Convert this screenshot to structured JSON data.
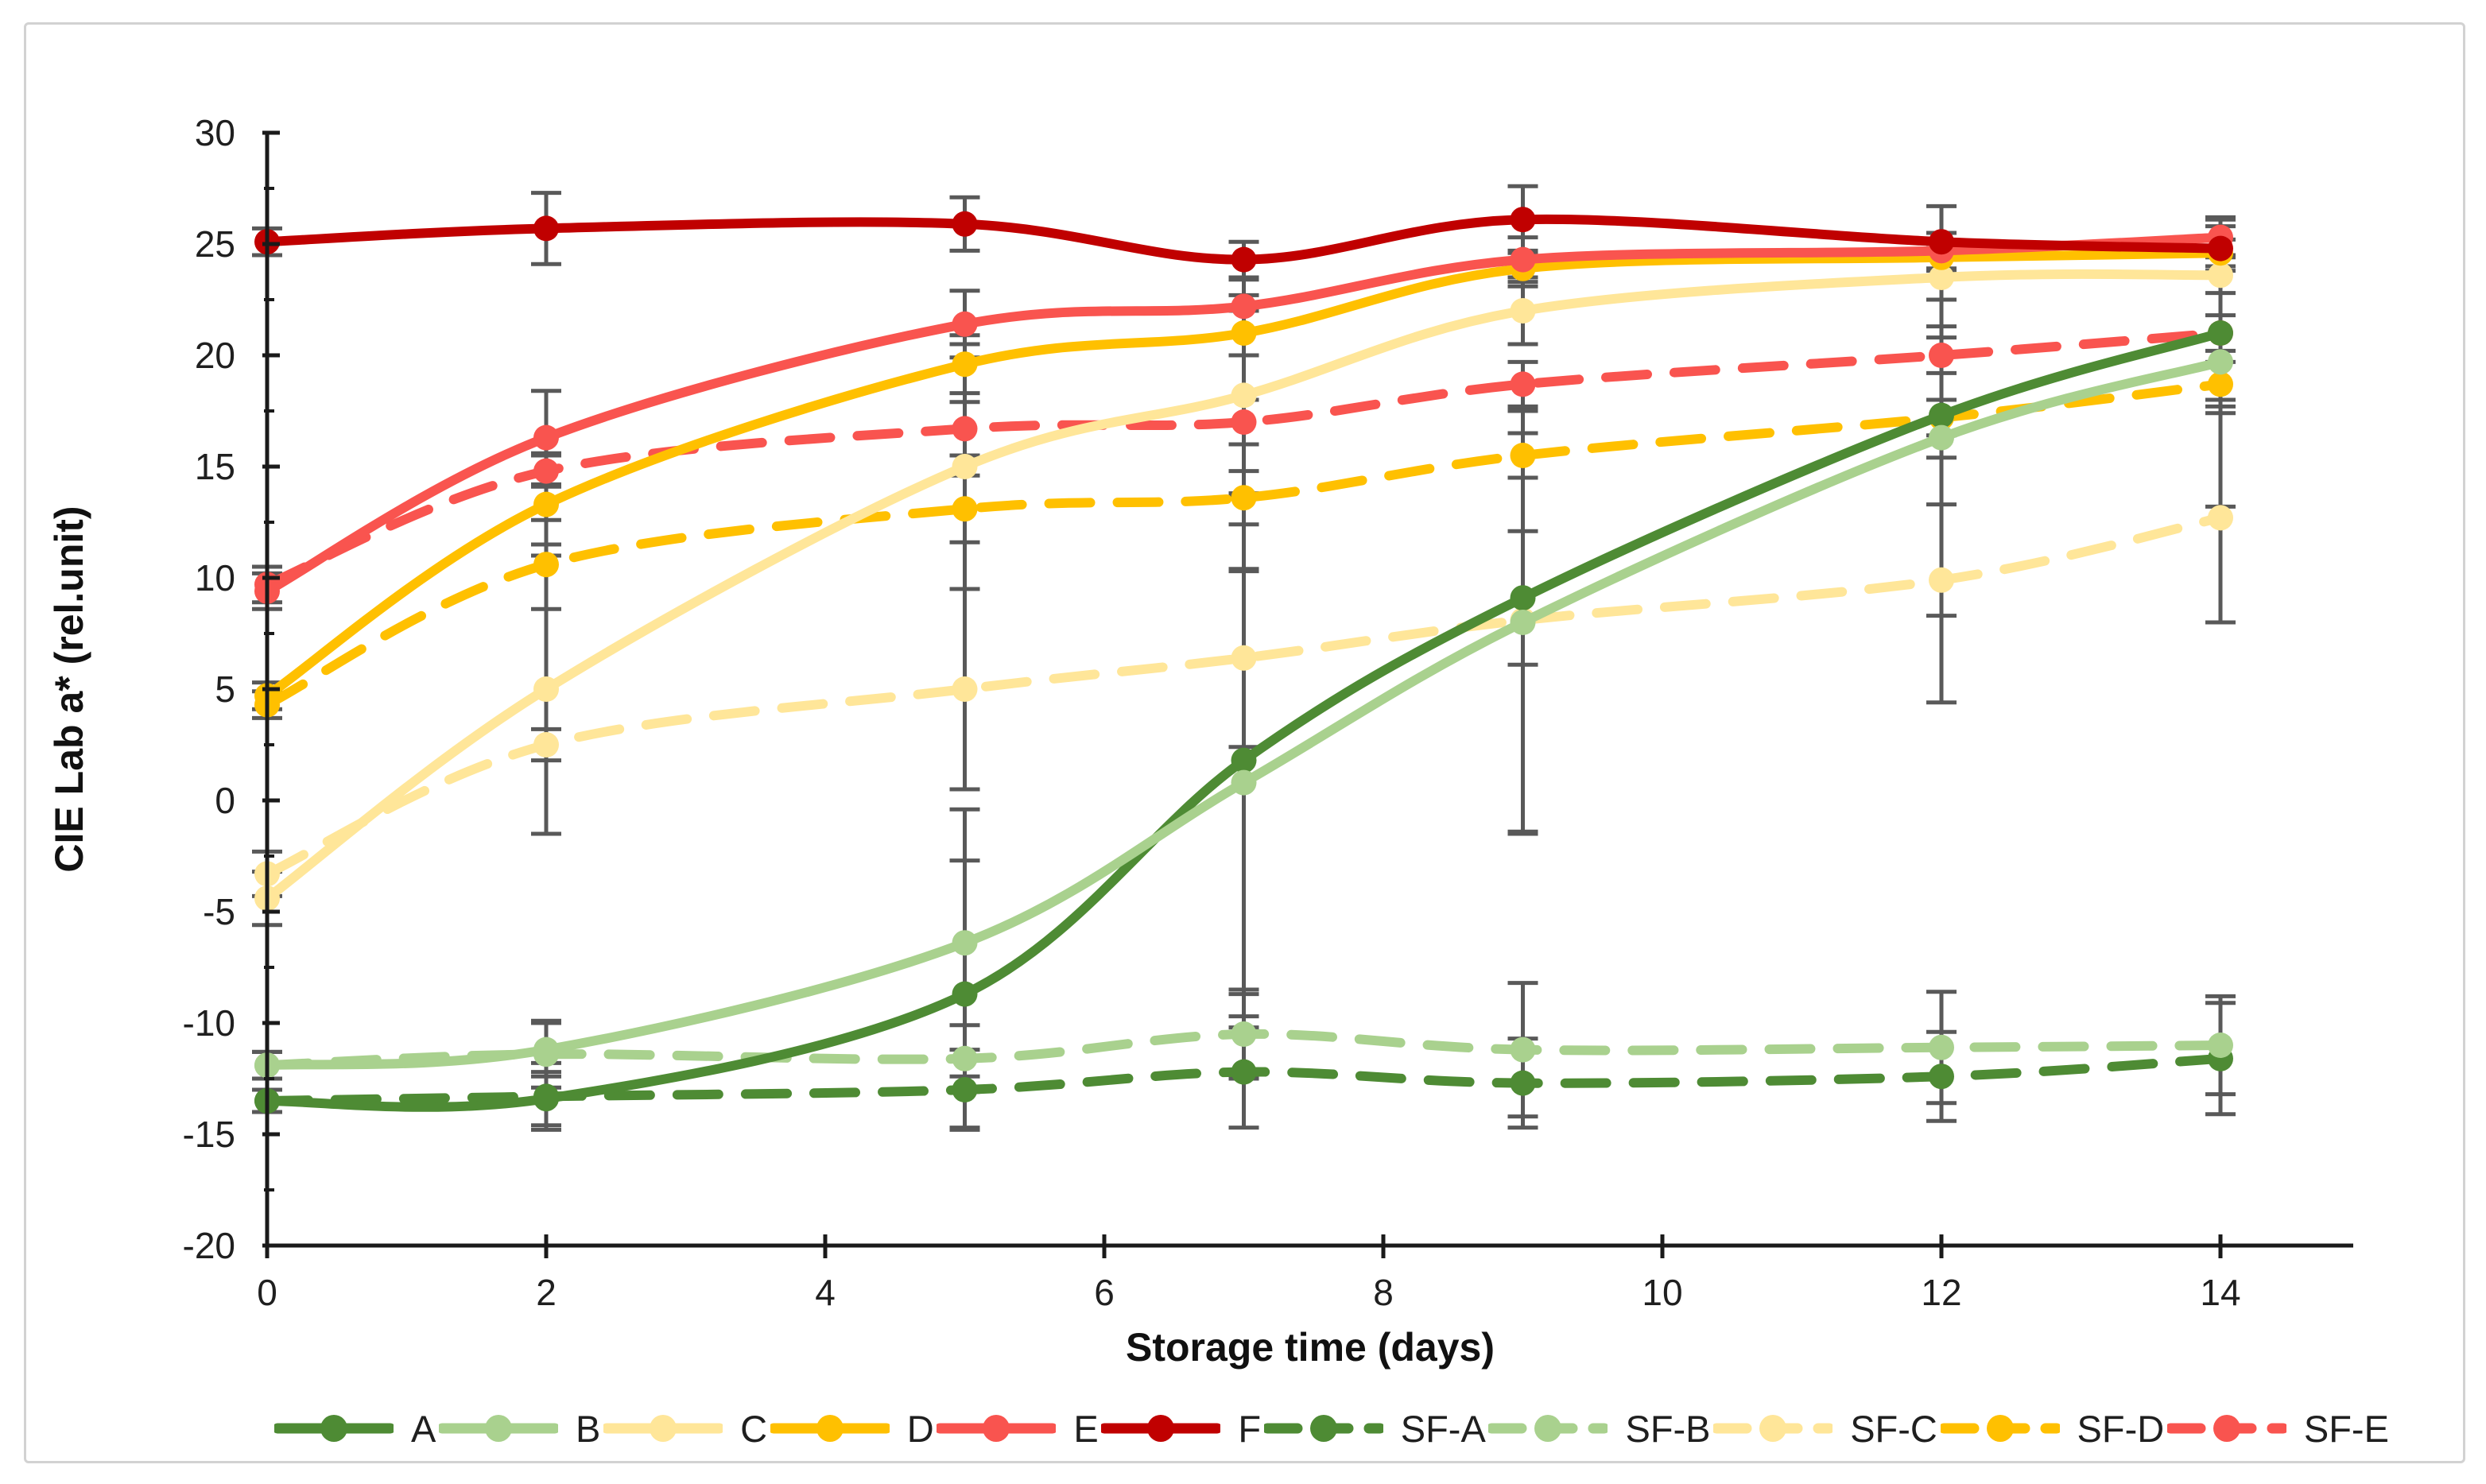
{
  "chart_data": {
    "type": "line",
    "title": "",
    "xlabel": "Storage time (days)",
    "ylabel": "CIE Lab a* (rel.unit)",
    "x": [
      0,
      2,
      5,
      7,
      9,
      12,
      14
    ],
    "xticks": [
      0,
      2,
      4,
      6,
      8,
      10,
      12,
      14
    ],
    "xtick_labels": [
      "0",
      "2",
      "4",
      "6",
      "8",
      "10",
      "12",
      "14"
    ],
    "ylim": [
      -20,
      30
    ],
    "ytick_step": 5,
    "ytick_minor_step": 2.5,
    "ytick_labels": [
      "30",
      "25",
      "20",
      "15",
      "10",
      "5",
      "0",
      "-5",
      "-10",
      "-15",
      "-20"
    ],
    "grid": false,
    "legend_position": "bottom",
    "axis_color": "#1a1a1a",
    "error_bar_color": "#595959",
    "series": [
      {
        "name": "A",
        "color": "#4e8b34",
        "dashed": false,
        "values": [
          -13.5,
          -13.4,
          -8.7,
          1.8,
          9.1,
          17.3,
          21.0
        ],
        "err": [
          0.5,
          1.2,
          6.0,
          12.0,
          3.0,
          4.0,
          3.0
        ]
      },
      {
        "name": "B",
        "color": "#a9d18e",
        "dashed": false,
        "values": [
          -11.9,
          -11.2,
          -6.4,
          0.8,
          8.0,
          16.3,
          19.7
        ],
        "err": [
          0.6,
          1.2,
          6.0,
          9.5,
          9.5,
          8.0,
          6.5
        ]
      },
      {
        "name": "C",
        "color": "#ffe699",
        "dashed": false,
        "values": [
          -4.4,
          5.0,
          15.0,
          18.2,
          22.0,
          23.5,
          23.6
        ],
        "err": [
          1.2,
          6.5,
          5.5,
          4.5,
          1.5,
          1.0,
          0.8
        ]
      },
      {
        "name": "D",
        "color": "#ffc000",
        "dashed": false,
        "values": [
          4.7,
          13.3,
          19.6,
          21.0,
          23.9,
          24.4,
          24.6
        ],
        "err": [
          0.6,
          2.3,
          1.3,
          1.0,
          0.8,
          0.6,
          0.6
        ]
      },
      {
        "name": "E",
        "color": "#f9544f",
        "dashed": false,
        "values": [
          9.4,
          16.3,
          21.4,
          22.2,
          24.3,
          24.7,
          25.3
        ],
        "err": [
          0.8,
          2.1,
          1.5,
          1.2,
          1.0,
          0.8,
          0.8
        ]
      },
      {
        "name": "F",
        "color": "#c00000",
        "dashed": false,
        "values": [
          25.1,
          25.7,
          25.9,
          24.3,
          26.1,
          25.1,
          24.8
        ],
        "err": [
          0.6,
          1.6,
          1.2,
          0.8,
          1.5,
          1.6,
          1.0
        ]
      },
      {
        "name": "SF-A",
        "color": "#4e8b34",
        "dashed": true,
        "values": [
          -13.5,
          -13.3,
          -13.0,
          -12.2,
          -12.7,
          -12.4,
          -11.6
        ],
        "err": [
          0.5,
          1.5,
          1.8,
          2.5,
          2.0,
          2.0,
          2.5
        ]
      },
      {
        "name": "SF-B",
        "color": "#a9d18e",
        "dashed": true,
        "values": [
          -11.9,
          -11.4,
          -11.6,
          -10.5,
          -11.2,
          -11.1,
          -11.0
        ],
        "err": [
          0.6,
          1.5,
          1.5,
          2.0,
          3.0,
          2.5,
          2.2
        ]
      },
      {
        "name": "SF-C",
        "color": "#ffe699",
        "dashed": true,
        "values": [
          -3.3,
          2.5,
          5.0,
          6.4,
          8.1,
          9.9,
          12.7
        ],
        "err": [
          1.0,
          0.7,
          4.5,
          4.0,
          9.5,
          5.5,
          4.7
        ]
      },
      {
        "name": "SF-D",
        "color": "#ffc000",
        "dashed": true,
        "values": [
          4.3,
          10.6,
          13.1,
          13.6,
          15.5,
          17.2,
          18.7
        ],
        "err": [
          0.6,
          2.0,
          1.5,
          1.2,
          1.0,
          0.8,
          1.0
        ]
      },
      {
        "name": "SF-E",
        "color": "#f9544f",
        "dashed": true,
        "values": [
          9.7,
          14.8,
          16.7,
          17.0,
          18.7,
          20.0,
          21.0
        ],
        "err": [
          0.8,
          0.7,
          1.2,
          1.0,
          1.0,
          0.8,
          0.8
        ]
      }
    ]
  }
}
